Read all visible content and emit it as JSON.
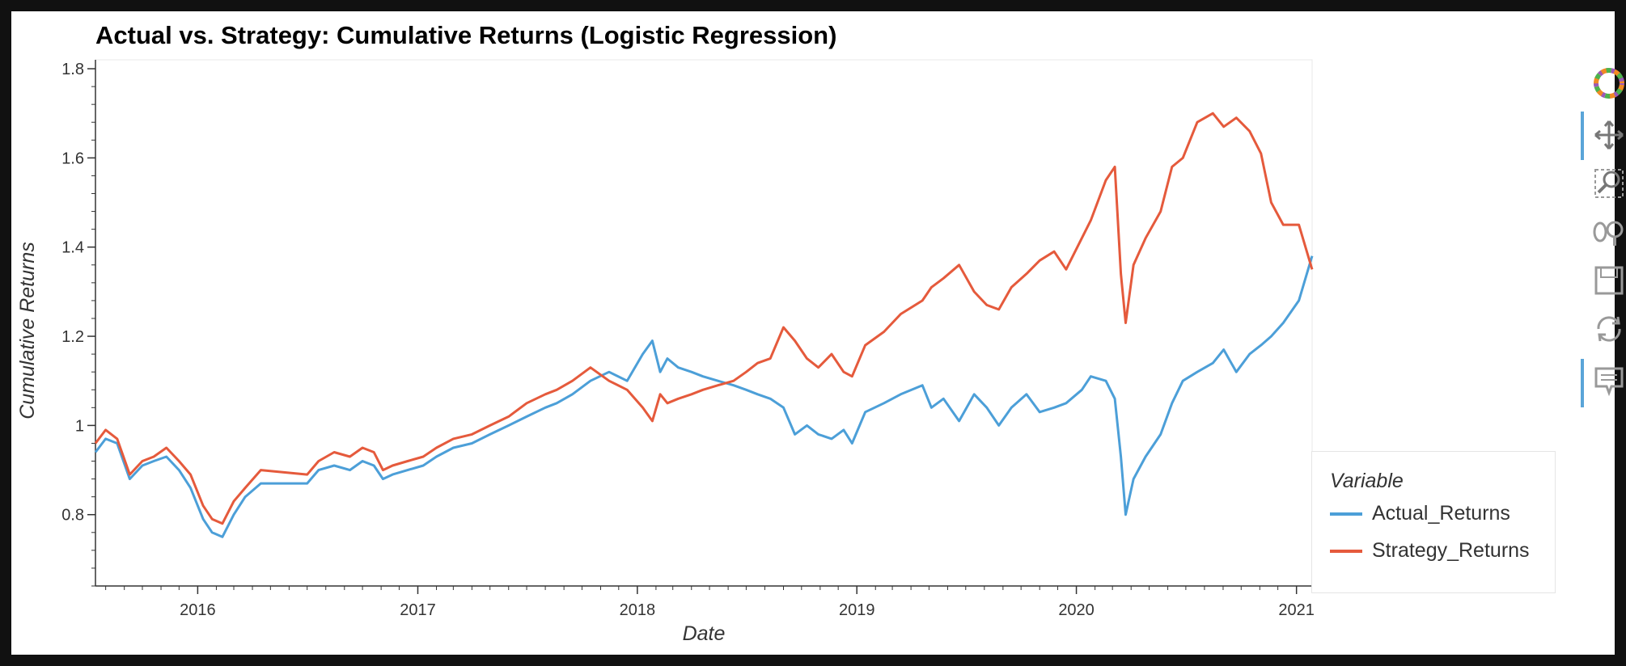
{
  "chart_data": {
    "type": "line",
    "title": "Actual vs. Strategy: Cumulative Returns (Logistic Regression)",
    "xlabel": "Date",
    "ylabel": "Cumulative Returns",
    "xlim": [
      "2015-07-15",
      "2021-01-27"
    ],
    "ylim": [
      0.64,
      1.82
    ],
    "x_ticks": [
      "2016",
      "2017",
      "2018",
      "2019",
      "2020",
      "2021"
    ],
    "y_ticks": [
      "0.8",
      "1",
      "1.2",
      "1.4",
      "1.6",
      "1.8"
    ],
    "grid": false,
    "legend": {
      "title": "Variable",
      "position": "right"
    },
    "series": [
      {
        "name": "Actual_Returns",
        "color": "#4C9FD8",
        "x": [
          "2015-07-15",
          "2015-08-01",
          "2015-08-20",
          "2015-09-10",
          "2015-10-01",
          "2015-10-20",
          "2015-11-10",
          "2015-12-01",
          "2015-12-20",
          "2016-01-10",
          "2016-01-25",
          "2016-02-11",
          "2016-03-01",
          "2016-03-20",
          "2016-04-15",
          "2016-07-01",
          "2016-07-20",
          "2016-08-15",
          "2016-09-10",
          "2016-10-01",
          "2016-10-20",
          "2016-11-04",
          "2016-11-20",
          "2016-12-15",
          "2017-01-10",
          "2017-02-01",
          "2017-03-01",
          "2017-04-01",
          "2017-05-01",
          "2017-06-01",
          "2017-07-01",
          "2017-08-01",
          "2017-08-20",
          "2017-09-15",
          "2017-10-15",
          "2017-11-15",
          "2017-12-15",
          "2018-01-10",
          "2018-01-26",
          "2018-02-08",
          "2018-02-20",
          "2018-03-10",
          "2018-04-01",
          "2018-04-20",
          "2018-05-15",
          "2018-06-10",
          "2018-07-01",
          "2018-07-20",
          "2018-08-10",
          "2018-09-01",
          "2018-09-20",
          "2018-10-10",
          "2018-10-29",
          "2018-11-20",
          "2018-12-10",
          "2018-12-24",
          "2019-01-15",
          "2019-02-15",
          "2019-03-15",
          "2019-04-20",
          "2019-05-05",
          "2019-05-25",
          "2019-06-20",
          "2019-07-15",
          "2019-08-05",
          "2019-08-25",
          "2019-09-15",
          "2019-10-10",
          "2019-11-01",
          "2019-11-25",
          "2019-12-15",
          "2020-01-10",
          "2020-01-25",
          "2020-02-19",
          "2020-03-05",
          "2020-03-15",
          "2020-03-23",
          "2020-04-05",
          "2020-04-25",
          "2020-05-20",
          "2020-06-08",
          "2020-06-26",
          "2020-07-20",
          "2020-08-15",
          "2020-09-02",
          "2020-09-23",
          "2020-10-15",
          "2020-11-03",
          "2020-11-20",
          "2020-12-10",
          "2021-01-05",
          "2021-01-27"
        ],
        "y": [
          0.94,
          0.97,
          0.96,
          0.88,
          0.91,
          0.92,
          0.93,
          0.9,
          0.86,
          0.79,
          0.76,
          0.75,
          0.8,
          0.84,
          0.87,
          0.87,
          0.9,
          0.91,
          0.9,
          0.92,
          0.91,
          0.88,
          0.89,
          0.9,
          0.91,
          0.93,
          0.95,
          0.96,
          0.98,
          1.0,
          1.02,
          1.04,
          1.05,
          1.07,
          1.1,
          1.12,
          1.1,
          1.16,
          1.19,
          1.12,
          1.15,
          1.13,
          1.12,
          1.11,
          1.1,
          1.09,
          1.08,
          1.07,
          1.06,
          1.04,
          0.98,
          1.0,
          0.98,
          0.97,
          0.99,
          0.96,
          1.03,
          1.05,
          1.07,
          1.09,
          1.04,
          1.06,
          1.01,
          1.07,
          1.04,
          1.0,
          1.04,
          1.07,
          1.03,
          1.04,
          1.05,
          1.08,
          1.11,
          1.1,
          1.06,
          0.93,
          0.8,
          0.88,
          0.93,
          0.98,
          1.05,
          1.1,
          1.12,
          1.14,
          1.17,
          1.12,
          1.16,
          1.18,
          1.2,
          1.23,
          1.28,
          1.38
        ]
      },
      {
        "name": "Strategy_Returns",
        "color": "#E55A3C",
        "x": [
          "2015-07-15",
          "2015-08-01",
          "2015-08-20",
          "2015-09-10",
          "2015-10-01",
          "2015-10-20",
          "2015-11-10",
          "2015-12-01",
          "2015-12-20",
          "2016-01-10",
          "2016-01-25",
          "2016-02-11",
          "2016-03-01",
          "2016-03-20",
          "2016-04-15",
          "2016-07-01",
          "2016-07-20",
          "2016-08-15",
          "2016-09-10",
          "2016-10-01",
          "2016-10-20",
          "2016-11-04",
          "2016-11-20",
          "2016-12-15",
          "2017-01-10",
          "2017-02-01",
          "2017-03-01",
          "2017-04-01",
          "2017-05-01",
          "2017-06-01",
          "2017-07-01",
          "2017-08-01",
          "2017-08-20",
          "2017-09-15",
          "2017-10-15",
          "2017-11-15",
          "2017-12-15",
          "2018-01-10",
          "2018-01-26",
          "2018-02-08",
          "2018-02-20",
          "2018-03-10",
          "2018-04-01",
          "2018-04-20",
          "2018-05-15",
          "2018-06-10",
          "2018-07-01",
          "2018-07-20",
          "2018-08-10",
          "2018-09-01",
          "2018-09-20",
          "2018-10-10",
          "2018-10-29",
          "2018-11-20",
          "2018-12-10",
          "2018-12-24",
          "2019-01-15",
          "2019-02-15",
          "2019-03-15",
          "2019-04-20",
          "2019-05-05",
          "2019-05-25",
          "2019-06-20",
          "2019-07-15",
          "2019-08-05",
          "2019-08-25",
          "2019-09-15",
          "2019-10-10",
          "2019-11-01",
          "2019-11-25",
          "2019-12-15",
          "2020-01-10",
          "2020-01-25",
          "2020-02-19",
          "2020-03-05",
          "2020-03-15",
          "2020-03-23",
          "2020-04-05",
          "2020-04-25",
          "2020-05-20",
          "2020-06-08",
          "2020-06-26",
          "2020-07-20",
          "2020-08-15",
          "2020-09-02",
          "2020-09-23",
          "2020-10-15",
          "2020-11-03",
          "2020-11-20",
          "2020-12-10",
          "2021-01-05",
          "2021-01-27"
        ],
        "y": [
          0.96,
          0.99,
          0.97,
          0.89,
          0.92,
          0.93,
          0.95,
          0.92,
          0.89,
          0.82,
          0.79,
          0.78,
          0.83,
          0.86,
          0.9,
          0.89,
          0.92,
          0.94,
          0.93,
          0.95,
          0.94,
          0.9,
          0.91,
          0.92,
          0.93,
          0.95,
          0.97,
          0.98,
          1.0,
          1.02,
          1.05,
          1.07,
          1.08,
          1.1,
          1.13,
          1.1,
          1.08,
          1.04,
          1.01,
          1.07,
          1.05,
          1.06,
          1.07,
          1.08,
          1.09,
          1.1,
          1.12,
          1.14,
          1.15,
          1.22,
          1.19,
          1.15,
          1.13,
          1.16,
          1.12,
          1.11,
          1.18,
          1.21,
          1.25,
          1.28,
          1.31,
          1.33,
          1.36,
          1.3,
          1.27,
          1.26,
          1.31,
          1.34,
          1.37,
          1.39,
          1.35,
          1.42,
          1.46,
          1.55,
          1.58,
          1.34,
          1.23,
          1.36,
          1.42,
          1.48,
          1.58,
          1.6,
          1.68,
          1.7,
          1.67,
          1.69,
          1.66,
          1.61,
          1.5,
          1.45,
          1.45,
          1.35
        ]
      }
    ]
  }
}
